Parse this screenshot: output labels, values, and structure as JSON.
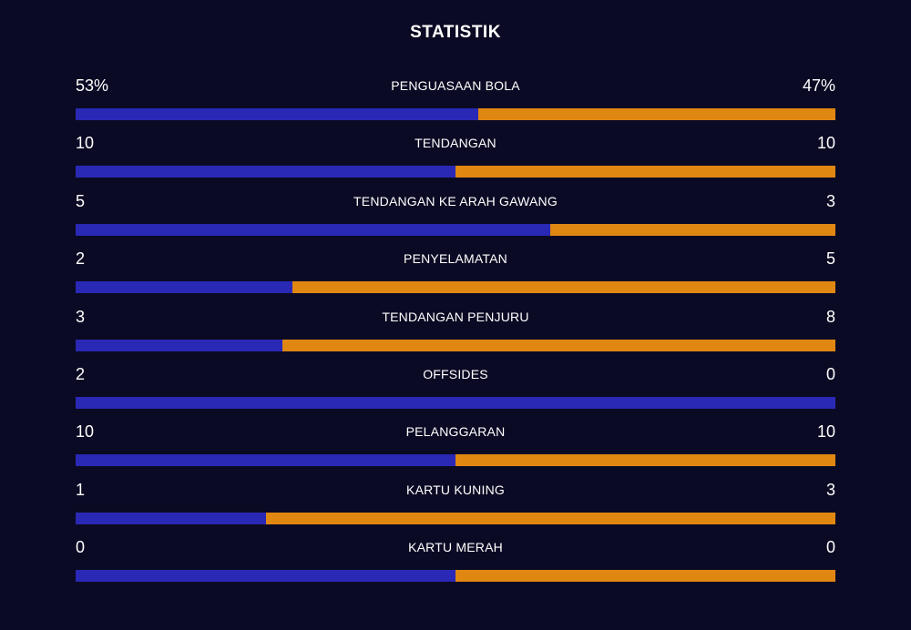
{
  "title": "STATISTIK",
  "colors": {
    "background": "#0b0a24",
    "home": "#2929b5",
    "away": "#e08712"
  },
  "stats": [
    {
      "label": "PENGUASAAN BOLA",
      "home": "53%",
      "away": "47%",
      "home_share": 0.53
    },
    {
      "label": "TENDANGAN",
      "home": "10",
      "away": "10",
      "home_share": 0.5
    },
    {
      "label": "TENDANGAN KE ARAH GAWANG",
      "home": "5",
      "away": "3",
      "home_share": 0.625
    },
    {
      "label": "PENYELAMATAN",
      "home": "2",
      "away": "5",
      "home_share": 0.2857
    },
    {
      "label": "TENDANGAN PENJURU",
      "home": "3",
      "away": "8",
      "home_share": 0.2727
    },
    {
      "label": "OFFSIDES",
      "home": "2",
      "away": "0",
      "home_share": 1.0
    },
    {
      "label": "PELANGGARAN",
      "home": "10",
      "away": "10",
      "home_share": 0.5
    },
    {
      "label": "KARTU KUNING",
      "home": "1",
      "away": "3",
      "home_share": 0.25
    },
    {
      "label": "KARTU MERAH",
      "home": "0",
      "away": "0",
      "home_share": 0.5
    }
  ]
}
